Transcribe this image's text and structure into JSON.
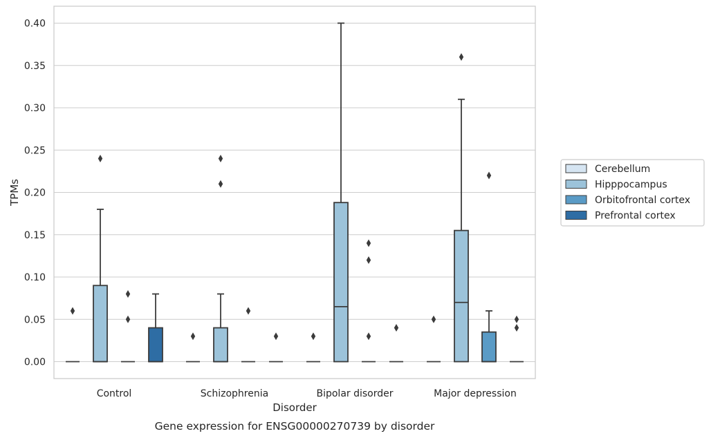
{
  "chart_data": {
    "type": "box",
    "title": "",
    "caption": "Gene expression for ENSG00000270739 by disorder",
    "xlabel": "Disorder",
    "ylabel": "TPMs",
    "ylim": [
      -0.02,
      0.42
    ],
    "yticks": [
      0.0,
      0.05,
      0.1,
      0.15,
      0.2,
      0.25,
      0.3,
      0.35,
      0.4
    ],
    "ytick_labels": [
      "0.00",
      "0.05",
      "0.10",
      "0.15",
      "0.20",
      "0.25",
      "0.30",
      "0.35",
      "0.40"
    ],
    "grid": "horizontal",
    "legend_position": "right",
    "categories": [
      "Control",
      "Schizophrenia",
      "Bipolar disorder",
      "Major depression"
    ],
    "series": [
      {
        "name": "Cerebellum",
        "color": "#d6e5f2",
        "boxes": [
          {
            "q1": 0,
            "median": 0,
            "q3": 0,
            "whisker_low": 0,
            "whisker_high": 0,
            "outliers": [
              0.06
            ]
          },
          {
            "q1": 0,
            "median": 0,
            "q3": 0,
            "whisker_low": 0,
            "whisker_high": 0,
            "outliers": [
              0.03
            ]
          },
          {
            "q1": 0,
            "median": 0,
            "q3": 0,
            "whisker_low": 0,
            "whisker_high": 0,
            "outliers": [
              0.03
            ]
          },
          {
            "q1": 0,
            "median": 0,
            "q3": 0,
            "whisker_low": 0,
            "whisker_high": 0,
            "outliers": [
              0.05
            ]
          }
        ]
      },
      {
        "name": "Hipppocampus",
        "color": "#9cc3da",
        "boxes": [
          {
            "q1": 0,
            "median": 0,
            "q3": 0.09,
            "whisker_low": 0,
            "whisker_high": 0.18,
            "outliers": [
              0.24
            ]
          },
          {
            "q1": 0,
            "median": 0,
            "q3": 0.04,
            "whisker_low": 0,
            "whisker_high": 0.08,
            "outliers": [
              0.21,
              0.24
            ]
          },
          {
            "q1": 0,
            "median": 0.065,
            "q3": 0.188,
            "whisker_low": 0,
            "whisker_high": 0.4,
            "outliers": []
          },
          {
            "q1": 0,
            "median": 0.07,
            "q3": 0.155,
            "whisker_low": 0,
            "whisker_high": 0.31,
            "outliers": [
              0.36
            ]
          }
        ]
      },
      {
        "name": "Orbitofrontal cortex",
        "color": "#5a9bc6",
        "boxes": [
          {
            "q1": 0,
            "median": 0,
            "q3": 0,
            "whisker_low": 0,
            "whisker_high": 0,
            "outliers": [
              0.05,
              0.08
            ]
          },
          {
            "q1": 0,
            "median": 0,
            "q3": 0,
            "whisker_low": 0,
            "whisker_high": 0,
            "outliers": [
              0.06
            ]
          },
          {
            "q1": 0,
            "median": 0,
            "q3": 0,
            "whisker_low": 0,
            "whisker_high": 0,
            "outliers": [
              0.03,
              0.12,
              0.14
            ]
          },
          {
            "q1": 0,
            "median": 0,
            "q3": 0.035,
            "whisker_low": 0,
            "whisker_high": 0.06,
            "outliers": [
              0.22
            ]
          }
        ]
      },
      {
        "name": "Prefrontal cortex",
        "color": "#2e6da4",
        "boxes": [
          {
            "q1": 0,
            "median": 0,
            "q3": 0.04,
            "whisker_low": 0,
            "whisker_high": 0.08,
            "outliers": []
          },
          {
            "q1": 0,
            "median": 0,
            "q3": 0,
            "whisker_low": 0,
            "whisker_high": 0,
            "outliers": [
              0.03
            ]
          },
          {
            "q1": 0,
            "median": 0,
            "q3": 0,
            "whisker_low": 0,
            "whisker_high": 0,
            "outliers": [
              0.04
            ]
          },
          {
            "q1": 0,
            "median": 0,
            "q3": 0,
            "whisker_low": 0,
            "whisker_high": 0,
            "outliers": [
              0.04,
              0.05
            ]
          }
        ]
      }
    ]
  }
}
